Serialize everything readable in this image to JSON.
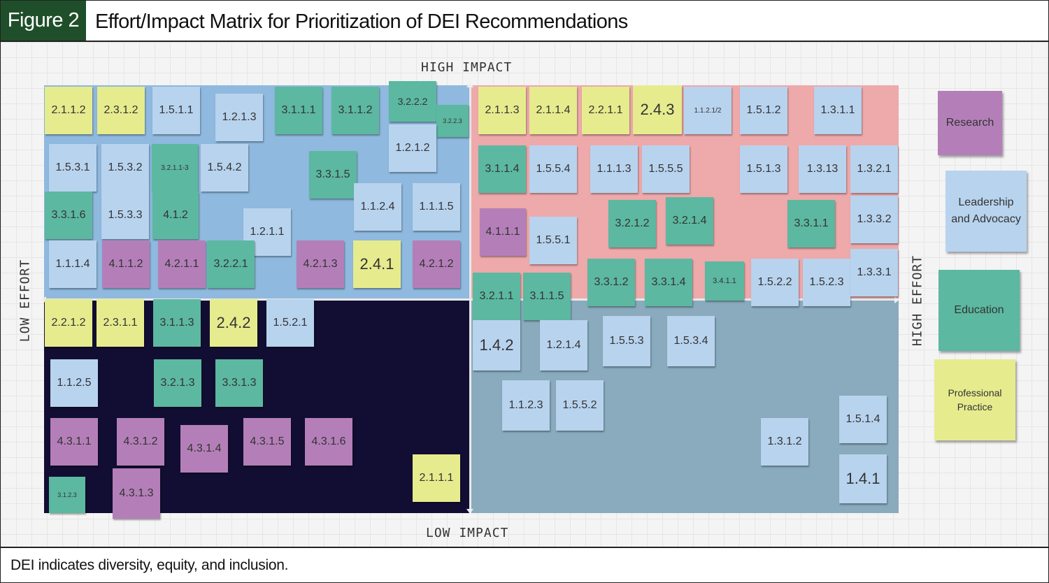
{
  "figure": {
    "label": "Figure 2",
    "title": "Effort/Impact Matrix for Prioritization of DEI Recommendations",
    "footnote": "DEI indicates diversity, equity, and inclusion."
  },
  "axes": {
    "top": "HIGH IMPACT",
    "bottom": "LOW IMPACT",
    "left": "LOW EFFORT",
    "right": "HIGH EFFORT"
  },
  "colors": {
    "research": "#b47fb8",
    "leadership_and_advocacy": "#b8d3ee",
    "education": "#5cb8a0",
    "professional_practice": "#e6ec8e",
    "high_impact_low_effort": "#8fb9de",
    "high_impact_high_effort": "#eea9ab",
    "low_impact_low_effort": "#120e33",
    "low_impact_high_effort": "#89abbd"
  },
  "legend": [
    {
      "label": "Research",
      "category": "research"
    },
    {
      "label": "Leadership and Advocacy",
      "category": "leadership"
    },
    {
      "label": "Education",
      "category": "education"
    },
    {
      "label": "Professional Practice",
      "category": "practice"
    }
  ],
  "quadrants": {
    "high_impact_low_effort": [
      {
        "label": "2.1.1.2",
        "category": "practice"
      },
      {
        "label": "2.3.1.2",
        "category": "practice"
      },
      {
        "label": "1.5.1.1",
        "category": "leadership"
      },
      {
        "label": "1.2.1.3",
        "category": "leadership"
      },
      {
        "label": "3.1.1.1",
        "category": "education"
      },
      {
        "label": "3.1.1.2",
        "category": "education"
      },
      {
        "label": "3.2.2.2",
        "category": "education"
      },
      {
        "label": "3.2.2.3",
        "category": "education"
      },
      {
        "label": "1.2.1.2",
        "category": "leadership"
      },
      {
        "label": "1.5.3.1",
        "category": "leadership"
      },
      {
        "label": "1.5.3.2",
        "category": "leadership"
      },
      {
        "label": "3.2.1.1-3",
        "category": "education"
      },
      {
        "label": "1.5.4.2",
        "category": "leadership"
      },
      {
        "label": "3.3.1.5",
        "category": "education"
      },
      {
        "label": "3.3.1.6",
        "category": "education"
      },
      {
        "label": "1.5.3.3",
        "category": "leadership"
      },
      {
        "label": "4.1.2",
        "category": "education"
      },
      {
        "label": "1.1.2.4",
        "category": "leadership"
      },
      {
        "label": "1.1.1.5",
        "category": "leadership"
      },
      {
        "label": "1.2.1.1",
        "category": "leadership"
      },
      {
        "label": "1.1.1.4",
        "category": "leadership"
      },
      {
        "label": "4.1.1.2",
        "category": "research"
      },
      {
        "label": "4.2.1.1",
        "category": "research"
      },
      {
        "label": "3.2.2.1",
        "category": "education"
      },
      {
        "label": "4.2.1.3",
        "category": "research"
      },
      {
        "label": "2.4.1",
        "category": "practice"
      },
      {
        "label": "4.2.1.2",
        "category": "research"
      }
    ],
    "high_impact_high_effort": [
      {
        "label": "2.1.1.3",
        "category": "practice"
      },
      {
        "label": "2.1.1.4",
        "category": "practice"
      },
      {
        "label": "2.2.1.1",
        "category": "practice"
      },
      {
        "label": "2.4.3",
        "category": "practice"
      },
      {
        "label": "1.1.2.1/2",
        "category": "leadership"
      },
      {
        "label": "1.5.1.2",
        "category": "leadership"
      },
      {
        "label": "1.3.1.1",
        "category": "leadership"
      },
      {
        "label": "3.1.1.4",
        "category": "education"
      },
      {
        "label": "1.5.5.4",
        "category": "leadership"
      },
      {
        "label": "1.1.1.3",
        "category": "leadership"
      },
      {
        "label": "1.5.5.5",
        "category": "leadership"
      },
      {
        "label": "1.5.1.3",
        "category": "leadership"
      },
      {
        "label": "1.3.13",
        "category": "leadership"
      },
      {
        "label": "1.3.2.1",
        "category": "leadership"
      },
      {
        "label": "4.1.1.1",
        "category": "research"
      },
      {
        "label": "1.5.5.1",
        "category": "leadership"
      },
      {
        "label": "3.2.1.2",
        "category": "education"
      },
      {
        "label": "3.2.1.4",
        "category": "education"
      },
      {
        "label": "3.3.1.1",
        "category": "education"
      },
      {
        "label": "1.3.3.2",
        "category": "leadership"
      },
      {
        "label": "3.3.1.2",
        "category": "education"
      },
      {
        "label": "3.3.1.4",
        "category": "education"
      },
      {
        "label": "3.4.1.1",
        "category": "education"
      },
      {
        "label": "1.5.2.2",
        "category": "leadership"
      },
      {
        "label": "1.5.2.3",
        "category": "leadership"
      },
      {
        "label": "1.3.3.1",
        "category": "leadership"
      },
      {
        "label": "3.2.1.1",
        "category": "education"
      },
      {
        "label": "3.1.1.5",
        "category": "education"
      }
    ],
    "low_impact_low_effort": [
      {
        "label": "2.2.1.2",
        "category": "practice"
      },
      {
        "label": "2.3.1.1",
        "category": "practice"
      },
      {
        "label": "3.1.1.3",
        "category": "education"
      },
      {
        "label": "2.4.2",
        "category": "practice"
      },
      {
        "label": "1.5.2.1",
        "category": "leadership"
      },
      {
        "label": "1.1.2.5",
        "category": "leadership"
      },
      {
        "label": "3.2.1.3",
        "category": "education"
      },
      {
        "label": "3.3.1.3",
        "category": "education"
      },
      {
        "label": "4.3.1.1",
        "category": "research"
      },
      {
        "label": "4.3.1.2",
        "category": "research"
      },
      {
        "label": "4.3.1.4",
        "category": "research"
      },
      {
        "label": "4.3.1.5",
        "category": "research"
      },
      {
        "label": "4.3.1.6",
        "category": "research"
      },
      {
        "label": "3.1.2.3",
        "category": "education"
      },
      {
        "label": "4.3.1.3",
        "category": "research"
      },
      {
        "label": "2.1.1.1",
        "category": "practice"
      }
    ],
    "low_impact_high_effort": [
      {
        "label": "1.4.2",
        "category": "leadership"
      },
      {
        "label": "1.2.1.4",
        "category": "leadership"
      },
      {
        "label": "1.5.5.3",
        "category": "leadership"
      },
      {
        "label": "1.5.3.4",
        "category": "leadership"
      },
      {
        "label": "1.1.2.3",
        "category": "leadership"
      },
      {
        "label": "1.5.5.2",
        "category": "leadership"
      },
      {
        "label": "1.5.1.4",
        "category": "leadership"
      },
      {
        "label": "1.3.1.2",
        "category": "leadership"
      },
      {
        "label": "1.4.1",
        "category": "leadership"
      }
    ]
  }
}
